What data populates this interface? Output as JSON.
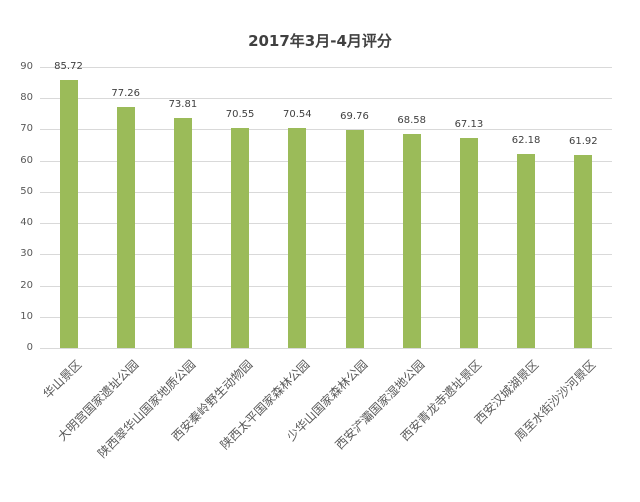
{
  "chart_data": {
    "type": "bar",
    "title": "2017年3月-4月评分",
    "xlabel": "",
    "ylabel": "",
    "ylim": [
      0,
      90
    ],
    "yticks": [
      0,
      10,
      20,
      30,
      40,
      50,
      60,
      70,
      80,
      90
    ],
    "grid": true,
    "legend": null,
    "bar_color": "#9BBB59",
    "categories": [
      "华山景区",
      "大明宫国家遗址公园",
      "陕西翠华山国家地质公园",
      "西安秦岭野生动物园",
      "陕西太平国家森林公园",
      "少华山国家森林公园",
      "西安浐灞国家湿地公园",
      "西安青龙寺遗址景区",
      "西安汉城湖景区",
      "周至水街沙沙河景区"
    ],
    "values": [
      85.72,
      77.26,
      73.81,
      70.55,
      70.54,
      69.76,
      68.58,
      67.13,
      62.18,
      61.92
    ],
    "value_labels": [
      "85.72",
      "77.26",
      "73.81",
      "70.55",
      "70.54",
      "69.76",
      "68.58",
      "67.13",
      "62.18",
      "61.92"
    ]
  }
}
